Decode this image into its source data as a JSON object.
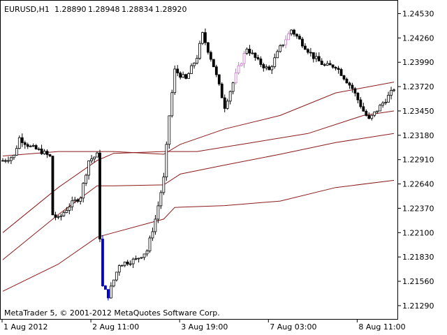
{
  "header": {
    "symbol": "EURUSD,H1",
    "open": "1.28890",
    "high": "1.28948",
    "low": "1.28834",
    "close": "1.28920"
  },
  "footer": {
    "copyright": "MetaTrader 5, © 2001-2012 MetaQuotes Software Corp."
  },
  "colors": {
    "background": "#ffffff",
    "axis": "#000000",
    "candle": "#000000",
    "candle_highlight_blue": "#0000cc",
    "candle_highlight_pink": "#cc77cc",
    "band_line": "#8b1a1a"
  },
  "chart_data": {
    "type": "candlestick",
    "timeframe": "H1",
    "y_ticks": [
      "1.24530",
      "1.24260",
      "1.23990",
      "1.23720",
      "1.23450",
      "1.23180",
      "1.22910",
      "1.22640",
      "1.22370",
      "1.22100",
      "1.21830",
      "1.21560",
      "1.21290"
    ],
    "ylim": [
      1.2115,
      1.2465
    ],
    "x_ticks": [
      {
        "label": "1 Aug 2012",
        "bar": 0
      },
      {
        "label": "2 Aug 11:00",
        "bar": 32
      },
      {
        "label": "3 Aug 19:00",
        "bar": 64
      },
      {
        "label": "7 Aug 03:00",
        "bar": 96
      },
      {
        "label": "8 Aug 11:00",
        "bar": 128
      }
    ],
    "bar_count": 142,
    "candles_close_path": [
      [
        0,
        1.229
      ],
      [
        4,
        1.2295
      ],
      [
        6,
        1.2315
      ],
      [
        10,
        1.2305
      ],
      [
        14,
        1.23
      ],
      [
        17,
        1.2294
      ],
      [
        18,
        1.223
      ],
      [
        20,
        1.2225
      ],
      [
        24,
        1.224
      ],
      [
        28,
        1.225
      ],
      [
        31,
        1.229
      ],
      [
        34,
        1.2296
      ],
      [
        35,
        1.2205
      ],
      [
        36,
        1.215
      ],
      [
        38,
        1.214
      ],
      [
        42,
        1.2175
      ],
      [
        48,
        1.218
      ],
      [
        52,
        1.219
      ],
      [
        55,
        1.2225
      ],
      [
        58,
        1.227
      ],
      [
        60,
        1.234
      ],
      [
        62,
        1.239
      ],
      [
        66,
        1.238
      ],
      [
        70,
        1.2405
      ],
      [
        72,
        1.243
      ],
      [
        76,
        1.2395
      ],
      [
        80,
        1.235
      ],
      [
        84,
        1.2385
      ],
      [
        88,
        1.2415
      ],
      [
        92,
        1.24
      ],
      [
        96,
        1.239
      ],
      [
        100,
        1.2415
      ],
      [
        104,
        1.2435
      ],
      [
        108,
        1.242
      ],
      [
        112,
        1.2405
      ],
      [
        116,
        1.2395
      ],
      [
        120,
        1.2395
      ],
      [
        126,
        1.237
      ],
      [
        130,
        1.2345
      ],
      [
        132,
        1.2335
      ],
      [
        136,
        1.235
      ],
      [
        140,
        1.2365
      ],
      [
        141,
        1.237
      ]
    ],
    "highlight_bars": {
      "blue": [
        36,
        37,
        38
      ],
      "pink": [
        84,
        85,
        86,
        87,
        102,
        103
      ]
    },
    "bands": [
      {
        "name": "upper",
        "points": [
          [
            0,
            1.2295
          ],
          [
            20,
            1.23
          ],
          [
            40,
            1.23
          ],
          [
            58,
            1.2297
          ],
          [
            64,
            1.2308
          ],
          [
            80,
            1.2325
          ],
          [
            100,
            1.234
          ],
          [
            120,
            1.2365
          ],
          [
            141,
            1.2377
          ]
        ]
      },
      {
        "name": "middle-upper",
        "points": [
          [
            0,
            1.221
          ],
          [
            20,
            1.226
          ],
          [
            34,
            1.229
          ],
          [
            40,
            1.2298
          ],
          [
            58,
            1.23
          ],
          [
            70,
            1.23
          ],
          [
            90,
            1.231
          ],
          [
            110,
            1.232
          ],
          [
            130,
            1.234
          ],
          [
            141,
            1.2345
          ]
        ]
      },
      {
        "name": "middle",
        "points": [
          [
            0,
            1.218
          ],
          [
            20,
            1.223
          ],
          [
            34,
            1.2262
          ],
          [
            40,
            1.2262
          ],
          [
            58,
            1.2263
          ],
          [
            64,
            1.2275
          ],
          [
            80,
            1.2285
          ],
          [
            100,
            1.2297
          ],
          [
            120,
            1.231
          ],
          [
            141,
            1.232
          ]
        ]
      },
      {
        "name": "lower",
        "points": [
          [
            0,
            1.2145
          ],
          [
            20,
            1.2175
          ],
          [
            34,
            1.2205
          ],
          [
            40,
            1.221
          ],
          [
            58,
            1.2225
          ],
          [
            62,
            1.2238
          ],
          [
            80,
            1.224
          ],
          [
            100,
            1.2245
          ],
          [
            120,
            1.226
          ],
          [
            141,
            1.2268
          ]
        ]
      }
    ]
  }
}
